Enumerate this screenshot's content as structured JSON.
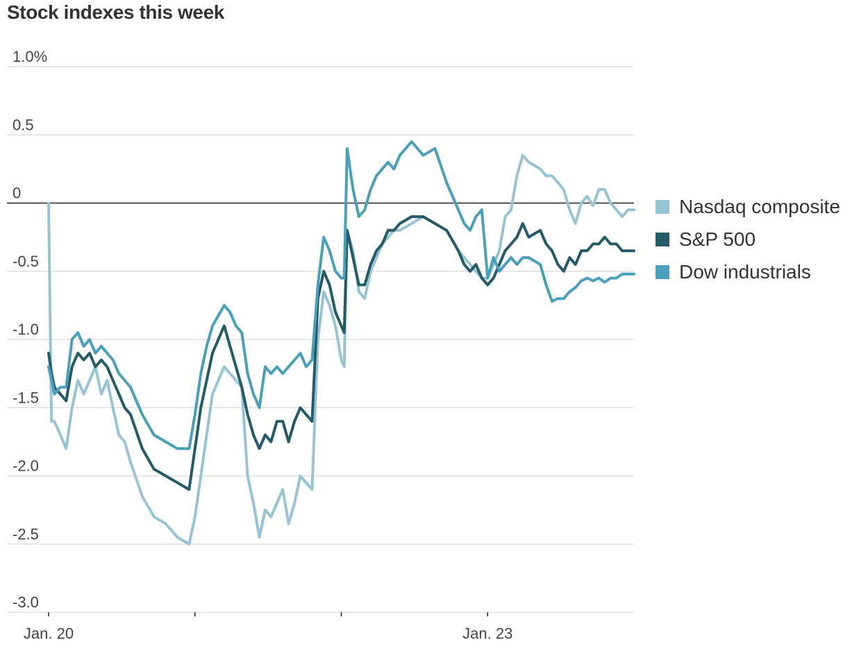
{
  "title": "Stock indexes this week",
  "legend": [
    {
      "label": "Nasdaq composite",
      "color": "#96c4d4"
    },
    {
      "label": "S&P 500",
      "color": "#235b68"
    },
    {
      "label": "Dow industrials",
      "color": "#4a9fba"
    }
  ],
  "chart_data": {
    "type": "line",
    "title": "Stock indexes this week",
    "xlabel": "",
    "ylabel": "",
    "xlim": [
      0,
      100
    ],
    "ylim": [
      -3.0,
      1.0
    ],
    "y_ticks": [
      {
        "value": 1.0,
        "label": "1.0%"
      },
      {
        "value": 0.5,
        "label": "0.5"
      },
      {
        "value": 0,
        "label": "0"
      },
      {
        "value": -0.5,
        "label": "-0.5"
      },
      {
        "value": -1.0,
        "label": "-1.0"
      },
      {
        "value": -1.5,
        "label": "-1.5"
      },
      {
        "value": -2.0,
        "label": "-2.0"
      },
      {
        "value": -2.5,
        "label": "-2.5"
      },
      {
        "value": -3.0,
        "label": "-3.0"
      }
    ],
    "x_tick_marks": [
      0,
      25,
      50,
      75
    ],
    "x_tick_labels": [
      {
        "x": 0,
        "label": "Jan. 20"
      },
      {
        "x": 75,
        "label": "Jan. 23"
      }
    ],
    "series": [
      {
        "name": "Nasdaq composite",
        "color": "#96c4d4",
        "x": [
          0,
          0.5,
          1,
          2,
          3,
          4,
          5,
          6,
          7,
          8,
          9,
          10,
          11,
          12,
          13,
          14,
          16,
          18,
          20,
          22,
          24,
          25,
          26,
          27,
          28,
          30,
          31,
          32,
          33,
          34,
          35,
          36,
          37,
          38,
          39,
          40,
          41,
          42,
          43,
          44,
          45,
          46,
          47,
          48,
          49,
          50,
          50.5,
          51,
          52,
          53,
          54,
          55,
          56,
          57,
          58,
          59,
          60,
          62,
          64,
          66,
          68,
          70,
          71,
          72,
          73,
          74,
          75,
          76,
          77,
          78,
          79,
          80,
          81,
          82,
          84,
          85,
          86,
          87,
          88,
          89,
          90,
          91,
          92,
          93,
          94,
          95,
          96,
          97,
          98,
          99,
          100
        ],
        "values": [
          0,
          -1.6,
          -1.6,
          -1.7,
          -1.8,
          -1.5,
          -1.3,
          -1.4,
          -1.3,
          -1.2,
          -1.4,
          -1.3,
          -1.5,
          -1.7,
          -1.75,
          -1.9,
          -2.15,
          -2.3,
          -2.35,
          -2.45,
          -2.5,
          -2.3,
          -2.0,
          -1.7,
          -1.4,
          -1.2,
          -1.25,
          -1.3,
          -1.35,
          -2.0,
          -2.2,
          -2.45,
          -2.25,
          -2.3,
          -2.2,
          -2.1,
          -2.35,
          -2.2,
          -2.0,
          -2.05,
          -2.1,
          -1.0,
          -0.65,
          -0.75,
          -0.9,
          -1.15,
          -1.2,
          -0.2,
          -0.35,
          -0.65,
          -0.7,
          -0.5,
          -0.4,
          -0.3,
          -0.25,
          -0.2,
          -0.2,
          -0.15,
          -0.1,
          -0.15,
          -0.2,
          -0.35,
          -0.4,
          -0.45,
          -0.5,
          -0.55,
          -0.55,
          -0.45,
          -0.35,
          -0.1,
          -0.05,
          0.2,
          0.35,
          0.3,
          0.25,
          0.2,
          0.2,
          0.15,
          0.1,
          -0.05,
          -0.15,
          0.0,
          0.05,
          -0.02,
          0.1,
          0.1,
          0.0,
          -0.05,
          -0.1,
          -0.05,
          -0.05
        ]
      },
      {
        "name": "S&P 500",
        "color": "#235b68",
        "x": [
          0,
          0.5,
          1,
          2,
          3,
          4,
          5,
          6,
          7,
          8,
          9,
          10,
          11,
          12,
          13,
          14,
          16,
          18,
          20,
          22,
          24,
          25,
          26,
          27,
          28,
          30,
          31,
          32,
          33,
          34,
          35,
          36,
          37,
          38,
          39,
          40,
          41,
          42,
          43,
          44,
          45,
          46,
          47,
          48,
          49,
          50,
          50.5,
          51,
          52,
          53,
          54,
          55,
          56,
          57,
          58,
          59,
          60,
          62,
          64,
          66,
          68,
          70,
          71,
          72,
          73,
          74,
          75,
          76,
          77,
          78,
          79,
          80,
          81,
          82,
          84,
          85,
          86,
          87,
          88,
          89,
          90,
          91,
          92,
          93,
          94,
          95,
          96,
          97,
          98,
          99,
          100
        ],
        "values": [
          -1.1,
          -1.25,
          -1.35,
          -1.4,
          -1.45,
          -1.2,
          -1.1,
          -1.15,
          -1.1,
          -1.2,
          -1.15,
          -1.2,
          -1.3,
          -1.4,
          -1.5,
          -1.55,
          -1.8,
          -1.95,
          -2.0,
          -2.05,
          -2.1,
          -1.8,
          -1.5,
          -1.3,
          -1.1,
          -0.9,
          -1.05,
          -1.2,
          -1.35,
          -1.55,
          -1.7,
          -1.8,
          -1.7,
          -1.75,
          -1.6,
          -1.6,
          -1.75,
          -1.6,
          -1.5,
          -1.55,
          -1.6,
          -0.7,
          -0.5,
          -0.6,
          -0.8,
          -0.9,
          -0.95,
          -0.2,
          -0.4,
          -0.6,
          -0.6,
          -0.45,
          -0.35,
          -0.3,
          -0.2,
          -0.2,
          -0.15,
          -0.1,
          -0.1,
          -0.15,
          -0.2,
          -0.35,
          -0.45,
          -0.5,
          -0.45,
          -0.55,
          -0.6,
          -0.55,
          -0.45,
          -0.35,
          -0.3,
          -0.25,
          -0.15,
          -0.25,
          -0.2,
          -0.3,
          -0.35,
          -0.45,
          -0.5,
          -0.4,
          -0.45,
          -0.35,
          -0.35,
          -0.3,
          -0.3,
          -0.25,
          -0.3,
          -0.3,
          -0.35,
          -0.35,
          -0.35
        ]
      },
      {
        "name": "Dow industrials",
        "color": "#4a9fba",
        "x": [
          0,
          0.5,
          1,
          2,
          3,
          4,
          5,
          6,
          7,
          8,
          9,
          10,
          11,
          12,
          13,
          14,
          16,
          18,
          20,
          22,
          24,
          25,
          26,
          27,
          28,
          30,
          31,
          32,
          33,
          34,
          35,
          36,
          37,
          38,
          39,
          40,
          41,
          42,
          43,
          44,
          45,
          46,
          47,
          48,
          49,
          50,
          50.5,
          51,
          52,
          53,
          54,
          55,
          56,
          57,
          58,
          59,
          60,
          62,
          64,
          66,
          68,
          70,
          71,
          72,
          73,
          74,
          75,
          76,
          77,
          78,
          79,
          80,
          81,
          82,
          84,
          85,
          86,
          87,
          88,
          89,
          90,
          91,
          92,
          93,
          94,
          95,
          96,
          97,
          98,
          99,
          100
        ],
        "values": [
          -1.2,
          -1.3,
          -1.4,
          -1.35,
          -1.35,
          -1.0,
          -0.95,
          -1.05,
          -1.0,
          -1.1,
          -1.05,
          -1.1,
          -1.15,
          -1.25,
          -1.3,
          -1.35,
          -1.55,
          -1.7,
          -1.75,
          -1.8,
          -1.8,
          -1.55,
          -1.25,
          -1.05,
          -0.9,
          -0.75,
          -0.8,
          -0.9,
          -0.95,
          -1.25,
          -1.4,
          -1.5,
          -1.2,
          -1.25,
          -1.2,
          -1.25,
          -1.2,
          -1.15,
          -1.1,
          -1.2,
          -1.15,
          -0.6,
          -0.25,
          -0.35,
          -0.5,
          -0.55,
          -0.55,
          0.4,
          0.1,
          -0.1,
          -0.05,
          0.1,
          0.2,
          0.25,
          0.3,
          0.25,
          0.35,
          0.45,
          0.35,
          0.4,
          0.15,
          -0.05,
          -0.15,
          -0.2,
          -0.1,
          -0.05,
          -0.55,
          -0.4,
          -0.5,
          -0.45,
          -0.4,
          -0.45,
          -0.4,
          -0.4,
          -0.45,
          -0.6,
          -0.72,
          -0.7,
          -0.7,
          -0.65,
          -0.62,
          -0.57,
          -0.55,
          -0.57,
          -0.55,
          -0.58,
          -0.55,
          -0.55,
          -0.52,
          -0.52,
          -0.52
        ]
      }
    ]
  }
}
